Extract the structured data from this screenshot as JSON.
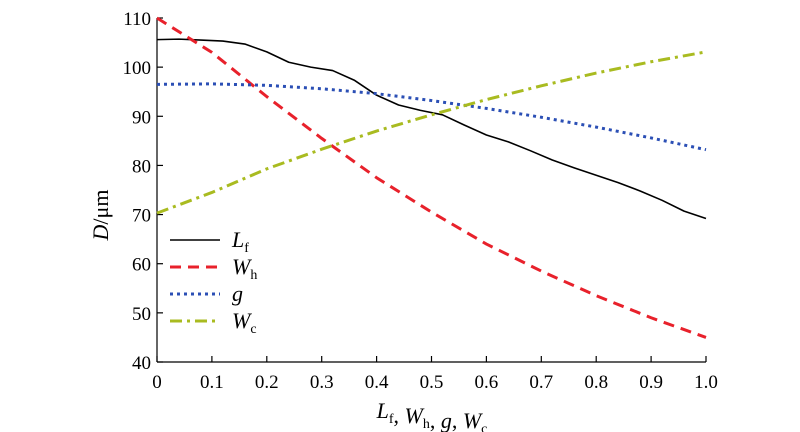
{
  "chart_data": {
    "type": "line",
    "xlabel_parts": [
      {
        "var": "L",
        "sub": "f"
      },
      {
        "sep": ", "
      },
      {
        "var": "W",
        "sub": "h"
      },
      {
        "sep": ", "
      },
      {
        "var": "g",
        "sub": ""
      },
      {
        "sep": ", "
      },
      {
        "var": "W",
        "sub": "c"
      }
    ],
    "ylabel_parts": [
      {
        "var": "D",
        "sub": ""
      },
      {
        "sep": "/μm"
      }
    ],
    "xlim": [
      0,
      1.0
    ],
    "ylim": [
      40,
      110
    ],
    "x_ticks": [
      "0",
      "0.1",
      "0.2",
      "0.3",
      "0.4",
      "0.5",
      "0.6",
      "0.7",
      "0.8",
      "0.9",
      "1.0"
    ],
    "y_ticks": [
      "40",
      "50",
      "60",
      "70",
      "80",
      "90",
      "100",
      "110"
    ],
    "legend_position": "bottom-left",
    "series": [
      {
        "name": "Lf",
        "label_var": "L",
        "label_sub": "f",
        "color": "#000000",
        "style": "solid",
        "x": [
          0,
          0.04,
          0.08,
          0.12,
          0.16,
          0.2,
          0.24,
          0.28,
          0.32,
          0.36,
          0.4,
          0.44,
          0.48,
          0.52,
          0.56,
          0.6,
          0.64,
          0.68,
          0.72,
          0.76,
          0.8,
          0.84,
          0.88,
          0.92,
          0.96,
          1.0
        ],
        "y": [
          105.6,
          105.7,
          105.5,
          105.3,
          104.7,
          103.1,
          101.0,
          100.0,
          99.3,
          97.3,
          94.3,
          92.3,
          91.2,
          90.3,
          88.2,
          86.2,
          84.8,
          83.0,
          81.1,
          79.5,
          78.0,
          76.5,
          74.8,
          72.9,
          70.7,
          69.2
        ]
      },
      {
        "name": "Wh",
        "label_var": "W",
        "label_sub": "h",
        "color": "#e8212b",
        "style": "dashed",
        "x": [
          0,
          0.1,
          0.2,
          0.3,
          0.4,
          0.5,
          0.6,
          0.7,
          0.8,
          0.9,
          1.0
        ],
        "y": [
          110,
          103,
          94,
          85.5,
          77.5,
          70.5,
          64,
          58.5,
          53.5,
          49,
          45
        ]
      },
      {
        "name": "g",
        "label_var": "g",
        "label_sub": "",
        "color": "#2b4fb5",
        "style": "dotted",
        "x": [
          0,
          0.1,
          0.2,
          0.3,
          0.4,
          0.5,
          0.6,
          0.7,
          0.8,
          0.9,
          1.0
        ],
        "y": [
          96.5,
          96.6,
          96.3,
          95.6,
          94.6,
          93.2,
          91.6,
          89.8,
          87.8,
          85.6,
          83.2
        ]
      },
      {
        "name": "Wc",
        "label_var": "W",
        "label_sub": "c",
        "color": "#a9bb20",
        "style": "dashdot",
        "x": [
          0,
          0.1,
          0.2,
          0.3,
          0.4,
          0.5,
          0.6,
          0.7,
          0.8,
          0.9,
          1.0
        ],
        "y": [
          70.3,
          74.5,
          79.3,
          83.3,
          87.0,
          90.3,
          93.4,
          96.2,
          98.8,
          101.1,
          103.1
        ]
      }
    ]
  }
}
